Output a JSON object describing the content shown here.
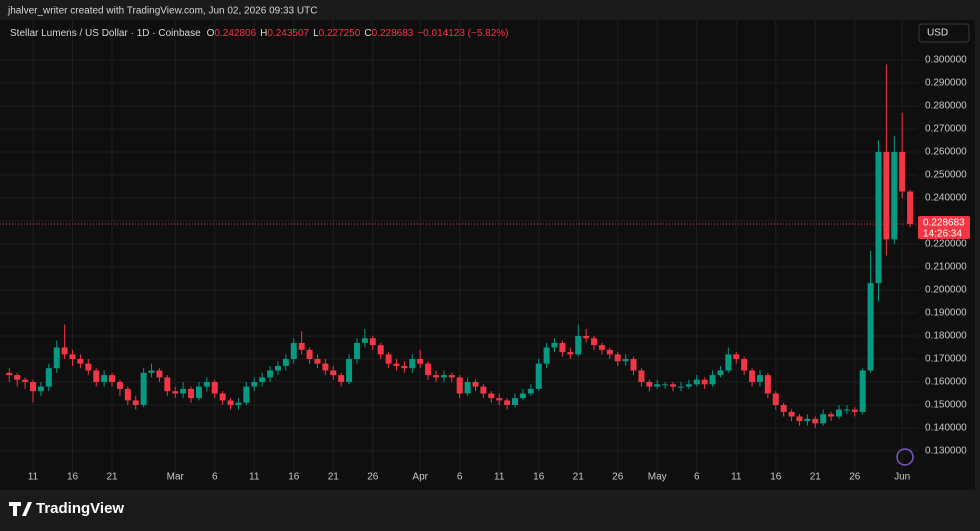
{
  "header": {
    "credit": "jhalver_writer created with TradingView.com, Jun 02, 2026 09:33 UTC",
    "brand": "TradingView"
  },
  "chart_data": {
    "type": "candlestick",
    "title": "Stellar Lumens / US Dollar · 1D · Coinbase",
    "ohlc_legend": [
      {
        "label": "O",
        "value": "0.242806"
      },
      {
        "label": "H",
        "value": "0.243507"
      },
      {
        "label": "L",
        "value": "0.227250"
      },
      {
        "label": "C",
        "value": "0.228683"
      }
    ],
    "change": "−0.014123 (−5.82%)",
    "currency": "USD",
    "countdown": "14:26:34",
    "up_color": "#089981",
    "down_color": "#f23645",
    "x": [
      "2026-02-08",
      "2026-02-09",
      "2026-02-10",
      "2026-02-11",
      "2026-02-12",
      "2026-02-13",
      "2026-02-14",
      "2026-02-15",
      "2026-02-16",
      "2026-02-17",
      "2026-02-18",
      "2026-02-19",
      "2026-02-20",
      "2026-02-21",
      "2026-02-22",
      "2026-02-23",
      "2026-02-24",
      "2026-02-25",
      "2026-02-26",
      "2026-02-27",
      "2026-02-28",
      "2026-03-01",
      "2026-03-02",
      "2026-03-03",
      "2026-03-04",
      "2026-03-05",
      "2026-03-06",
      "2026-03-07",
      "2026-03-08",
      "2026-03-09",
      "2026-03-10",
      "2026-03-11",
      "2026-03-12",
      "2026-03-13",
      "2026-03-14",
      "2026-03-15",
      "2026-03-16",
      "2026-03-17",
      "2026-03-18",
      "2026-03-19",
      "2026-03-20",
      "2026-03-21",
      "2026-03-22",
      "2026-03-23",
      "2026-03-24",
      "2026-03-25",
      "2026-03-26",
      "2026-03-27",
      "2026-03-28",
      "2026-03-29",
      "2026-03-30",
      "2026-03-31",
      "2026-04-01",
      "2026-04-02",
      "2026-04-03",
      "2026-04-04",
      "2026-04-05",
      "2026-04-06",
      "2026-04-07",
      "2026-04-08",
      "2026-04-09",
      "2026-04-10",
      "2026-04-11",
      "2026-04-12",
      "2026-04-13",
      "2026-04-14",
      "2026-04-15",
      "2026-04-16",
      "2026-04-17",
      "2026-04-18",
      "2026-04-19",
      "2026-04-20",
      "2026-04-21",
      "2026-04-22",
      "2026-04-23",
      "2026-04-24",
      "2026-04-25",
      "2026-04-26",
      "2026-04-27",
      "2026-04-28",
      "2026-04-29",
      "2026-04-30",
      "2026-05-01",
      "2026-05-02",
      "2026-05-03",
      "2026-05-04",
      "2026-05-05",
      "2026-05-06",
      "2026-05-07",
      "2026-05-08",
      "2026-05-09",
      "2026-05-10",
      "2026-05-11",
      "2026-05-12",
      "2026-05-13",
      "2026-05-14",
      "2026-05-15",
      "2026-05-16",
      "2026-05-17",
      "2026-05-18",
      "2026-05-19",
      "2026-05-20",
      "2026-05-21",
      "2026-05-22",
      "2026-05-23",
      "2026-05-24",
      "2026-05-25",
      "2026-05-26",
      "2026-05-27",
      "2026-05-28",
      "2026-05-29",
      "2026-05-30",
      "2026-05-31",
      "2026-06-01",
      "2026-06-02"
    ],
    "open": [
      0.164,
      0.163,
      0.161,
      0.16,
      0.156,
      0.158,
      0.166,
      0.175,
      0.172,
      0.17,
      0.168,
      0.165,
      0.16,
      0.163,
      0.16,
      0.157,
      0.152,
      0.15,
      0.164,
      0.165,
      0.162,
      0.156,
      0.155,
      0.157,
      0.153,
      0.158,
      0.16,
      0.155,
      0.152,
      0.15,
      0.151,
      0.158,
      0.16,
      0.162,
      0.165,
      0.167,
      0.17,
      0.177,
      0.174,
      0.17,
      0.168,
      0.165,
      0.163,
      0.16,
      0.17,
      0.177,
      0.179,
      0.176,
      0.172,
      0.168,
      0.167,
      0.166,
      0.17,
      0.168,
      0.163,
      0.162,
      0.163,
      0.162,
      0.155,
      0.16,
      0.158,
      0.155,
      0.153,
      0.152,
      0.15,
      0.153,
      0.155,
      0.157,
      0.168,
      0.175,
      0.177,
      0.173,
      0.172,
      0.18,
      0.179,
      0.176,
      0.174,
      0.172,
      0.169,
      0.17,
      0.165,
      0.16,
      0.158,
      0.159,
      0.159,
      0.158,
      0.158,
      0.159,
      0.161,
      0.159,
      0.163,
      0.165,
      0.172,
      0.17,
      0.165,
      0.16,
      0.163,
      0.155,
      0.15,
      0.147,
      0.145,
      0.143,
      0.144,
      0.142,
      0.146,
      0.145,
      0.148,
      0.148,
      0.147,
      0.165,
      0.203,
      0.26,
      0.222,
      0.26,
      0.242806
    ],
    "high": [
      0.166,
      0.164,
      0.162,
      0.161,
      0.16,
      0.168,
      0.178,
      0.185,
      0.174,
      0.172,
      0.17,
      0.166,
      0.165,
      0.164,
      0.161,
      0.158,
      0.154,
      0.166,
      0.168,
      0.166,
      0.163,
      0.158,
      0.16,
      0.158,
      0.16,
      0.162,
      0.161,
      0.156,
      0.153,
      0.153,
      0.16,
      0.162,
      0.164,
      0.167,
      0.169,
      0.172,
      0.179,
      0.182,
      0.175,
      0.172,
      0.17,
      0.167,
      0.164,
      0.172,
      0.179,
      0.183,
      0.18,
      0.177,
      0.173,
      0.17,
      0.169,
      0.172,
      0.174,
      0.169,
      0.165,
      0.165,
      0.164,
      0.163,
      0.162,
      0.161,
      0.159,
      0.156,
      0.155,
      0.153,
      0.155,
      0.157,
      0.159,
      0.17,
      0.177,
      0.179,
      0.178,
      0.175,
      0.185,
      0.183,
      0.18,
      0.177,
      0.175,
      0.173,
      0.172,
      0.171,
      0.166,
      0.161,
      0.161,
      0.16,
      0.16,
      0.16,
      0.161,
      0.163,
      0.162,
      0.165,
      0.167,
      0.175,
      0.173,
      0.171,
      0.166,
      0.165,
      0.164,
      0.156,
      0.151,
      0.148,
      0.146,
      0.146,
      0.145,
      0.148,
      0.147,
      0.15,
      0.15,
      0.149,
      0.166,
      0.217,
      0.265,
      0.298,
      0.267,
      0.277,
      0.243507
    ],
    "low": [
      0.16,
      0.158,
      0.157,
      0.151,
      0.154,
      0.156,
      0.164,
      0.17,
      0.167,
      0.166,
      0.163,
      0.158,
      0.158,
      0.158,
      0.154,
      0.15,
      0.148,
      0.149,
      0.162,
      0.16,
      0.154,
      0.153,
      0.153,
      0.151,
      0.152,
      0.156,
      0.153,
      0.15,
      0.148,
      0.148,
      0.15,
      0.156,
      0.158,
      0.16,
      0.163,
      0.165,
      0.168,
      0.172,
      0.168,
      0.166,
      0.163,
      0.161,
      0.158,
      0.159,
      0.168,
      0.175,
      0.174,
      0.17,
      0.166,
      0.165,
      0.164,
      0.164,
      0.166,
      0.161,
      0.16,
      0.16,
      0.16,
      0.153,
      0.154,
      0.156,
      0.153,
      0.151,
      0.15,
      0.148,
      0.149,
      0.152,
      0.154,
      0.156,
      0.166,
      0.173,
      0.171,
      0.17,
      0.171,
      0.177,
      0.174,
      0.172,
      0.17,
      0.167,
      0.167,
      0.163,
      0.158,
      0.156,
      0.157,
      0.157,
      0.156,
      0.156,
      0.157,
      0.158,
      0.157,
      0.158,
      0.162,
      0.164,
      0.168,
      0.163,
      0.158,
      0.158,
      0.153,
      0.148,
      0.145,
      0.143,
      0.141,
      0.141,
      0.14,
      0.141,
      0.143,
      0.144,
      0.146,
      0.145,
      0.146,
      0.164,
      0.195,
      0.215,
      0.22,
      0.24,
      0.22725
    ],
    "close": [
      0.163,
      0.161,
      0.16,
      0.156,
      0.158,
      0.166,
      0.175,
      0.172,
      0.17,
      0.168,
      0.165,
      0.16,
      0.163,
      0.16,
      0.157,
      0.152,
      0.15,
      0.164,
      0.165,
      0.162,
      0.156,
      0.155,
      0.157,
      0.153,
      0.158,
      0.16,
      0.155,
      0.152,
      0.15,
      0.151,
      0.158,
      0.16,
      0.162,
      0.165,
      0.167,
      0.17,
      0.177,
      0.174,
      0.17,
      0.168,
      0.165,
      0.163,
      0.16,
      0.17,
      0.177,
      0.179,
      0.176,
      0.172,
      0.168,
      0.167,
      0.166,
      0.17,
      0.168,
      0.163,
      0.162,
      0.163,
      0.162,
      0.155,
      0.16,
      0.158,
      0.155,
      0.153,
      0.152,
      0.15,
      0.153,
      0.155,
      0.157,
      0.168,
      0.175,
      0.177,
      0.173,
      0.172,
      0.18,
      0.179,
      0.176,
      0.174,
      0.172,
      0.169,
      0.17,
      0.165,
      0.16,
      0.158,
      0.159,
      0.159,
      0.158,
      0.158,
      0.159,
      0.161,
      0.159,
      0.163,
      0.165,
      0.172,
      0.17,
      0.165,
      0.16,
      0.163,
      0.155,
      0.15,
      0.147,
      0.145,
      0.143,
      0.144,
      0.142,
      0.146,
      0.145,
      0.148,
      0.148,
      0.147,
      0.165,
      0.203,
      0.26,
      0.222,
      0.26,
      0.242806,
      0.228683
    ],
    "xlim": [
      "2026-02-07",
      "2026-06-03"
    ],
    "xticks": [
      {
        "value": "2026-02-11",
        "label": "11"
      },
      {
        "value": "2026-02-16",
        "label": "16"
      },
      {
        "value": "2026-02-21",
        "label": "21"
      },
      {
        "value": "2026-03-01",
        "label": "Mar"
      },
      {
        "value": "2026-03-06",
        "label": "6"
      },
      {
        "value": "2026-03-11",
        "label": "11"
      },
      {
        "value": "2026-03-16",
        "label": "16"
      },
      {
        "value": "2026-03-21",
        "label": "21"
      },
      {
        "value": "2026-03-26",
        "label": "26"
      },
      {
        "value": "2026-04-01",
        "label": "Apr"
      },
      {
        "value": "2026-04-06",
        "label": "6"
      },
      {
        "value": "2026-04-11",
        "label": "11"
      },
      {
        "value": "2026-04-16",
        "label": "16"
      },
      {
        "value": "2026-04-21",
        "label": "21"
      },
      {
        "value": "2026-04-26",
        "label": "26"
      },
      {
        "value": "2026-05-01",
        "label": "May"
      },
      {
        "value": "2026-05-06",
        "label": "6"
      },
      {
        "value": "2026-05-11",
        "label": "11"
      },
      {
        "value": "2026-05-16",
        "label": "16"
      },
      {
        "value": "2026-05-21",
        "label": "21"
      },
      {
        "value": "2026-05-26",
        "label": "26"
      },
      {
        "value": "2026-06-01",
        "label": "Jun"
      }
    ],
    "ylim": [
      0.11304,
      0.31739
    ],
    "yticks": [
      {
        "value": 0.13,
        "label": "0.130000"
      },
      {
        "value": 0.14,
        "label": "0.140000"
      },
      {
        "value": 0.15,
        "label": "0.150000"
      },
      {
        "value": 0.16,
        "label": "0.160000"
      },
      {
        "value": 0.17,
        "label": "0.170000"
      },
      {
        "value": 0.18,
        "label": "0.180000"
      },
      {
        "value": 0.19,
        "label": "0.190000"
      },
      {
        "value": 0.2,
        "label": "0.200000"
      },
      {
        "value": 0.21,
        "label": "0.210000"
      },
      {
        "value": 0.22,
        "label": "0.220000"
      },
      {
        "value": 0.23,
        "label": "0.230000"
      },
      {
        "value": 0.24,
        "label": "0.240000"
      },
      {
        "value": 0.25,
        "label": "0.250000"
      },
      {
        "value": 0.26,
        "label": "0.260000"
      },
      {
        "value": 0.27,
        "label": "0.270000"
      },
      {
        "value": 0.28,
        "label": "0.280000"
      },
      {
        "value": 0.29,
        "label": "0.290000"
      },
      {
        "value": 0.3,
        "label": "0.300000"
      }
    ],
    "grid": true
  }
}
